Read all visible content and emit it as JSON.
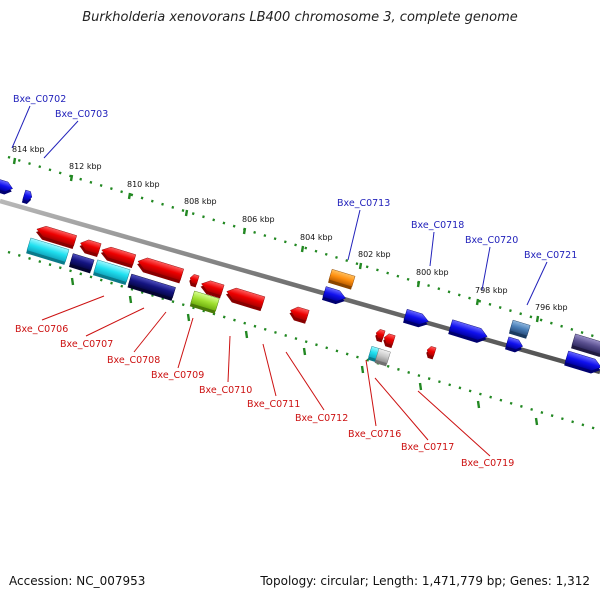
{
  "title": "Burkholderia xenovorans LB400 chromosome 3, complete genome",
  "footer": {
    "accession": "Accession: NC_007953",
    "topology": "Topology: circular; Length: 1,471,779 bp; Genes: 1,312"
  },
  "ticks": [
    "814 kbp",
    "812 kbp",
    "810 kbp",
    "808 kbp",
    "806 kbp",
    "804 kbp",
    "802 kbp",
    "800 kbp",
    "798 kbp",
    "796 kbp"
  ],
  "labels": {
    "top": [
      "Bxe_C0702",
      "Bxe_C0703",
      "Bxe_C0713",
      "Bxe_C0718",
      "Bxe_C0720",
      "Bxe_C0721"
    ],
    "bottom": [
      "Bxe_C0706",
      "Bxe_C0707",
      "Bxe_C0708",
      "Bxe_C0709",
      "Bxe_C0710",
      "Bxe_C0711",
      "Bxe_C0712",
      "Bxe_C0716",
      "Bxe_C0717",
      "Bxe_C0719"
    ]
  },
  "colors": {
    "forward_label": "#2222bb",
    "reverse_label": "#cc1111",
    "backbone": "#808080",
    "tick_dots": "#228822"
  },
  "gene_colors": [
    "red",
    "blue",
    "cyan",
    "navy",
    "orange",
    "lime",
    "steelblue",
    "slate",
    "grey"
  ]
}
